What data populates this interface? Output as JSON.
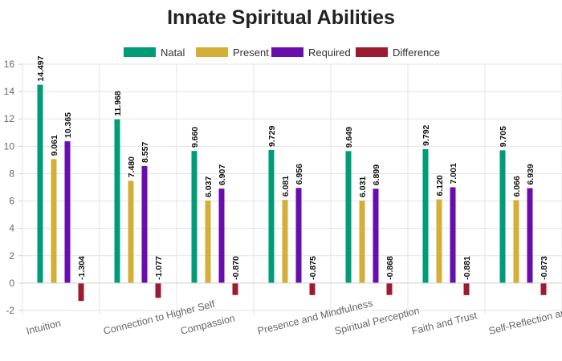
{
  "chart_data": {
    "type": "bar",
    "title": "Innate Spiritual Abilities",
    "xlabel": "",
    "ylabel": "",
    "ylim": [
      -2,
      16
    ],
    "yticks": [
      -2,
      0,
      2,
      4,
      6,
      8,
      10,
      12,
      14,
      16
    ],
    "grid": true,
    "legend_position": "top-center",
    "categories": [
      "Intuition",
      "Connection to Higher Self",
      "Compassion",
      "Presence and Mindfulness",
      "Spiritual Perception",
      "Faith and Trust",
      "Self-Reflection and Growth"
    ],
    "series": [
      {
        "name": "Natal",
        "color": "#009b77",
        "values": [
          14.497,
          11.968,
          9.66,
          9.729,
          9.649,
          9.792,
          9.705
        ],
        "labels": [
          "14.497",
          "11.968",
          "9.660",
          "9.729",
          "9.649",
          "9.792",
          "9.705"
        ]
      },
      {
        "name": "Present",
        "color": "#d4af37",
        "values": [
          9.061,
          7.48,
          6.037,
          6.081,
          6.031,
          6.12,
          6.066
        ],
        "labels": [
          "9.061",
          "7.480",
          "6.037",
          "6.081",
          "6.031",
          "6.120",
          "6.066"
        ]
      },
      {
        "name": "Required",
        "color": "#6a0dad",
        "values": [
          10.365,
          8.557,
          6.907,
          6.956,
          6.899,
          7.001,
          6.939
        ],
        "labels": [
          "10.365",
          "8.557",
          "6.907",
          "6.956",
          "6.899",
          "7.001",
          "6.939"
        ]
      },
      {
        "name": "Difference",
        "color": "#9b1b30",
        "values": [
          -1.304,
          -1.077,
          -0.87,
          -0.875,
          -0.868,
          -0.881,
          -0.873
        ],
        "labels": [
          "-1.304",
          "-1.077",
          "-0.870",
          "-0.875",
          "-0.868",
          "-0.881",
          "-0.873"
        ]
      }
    ]
  }
}
